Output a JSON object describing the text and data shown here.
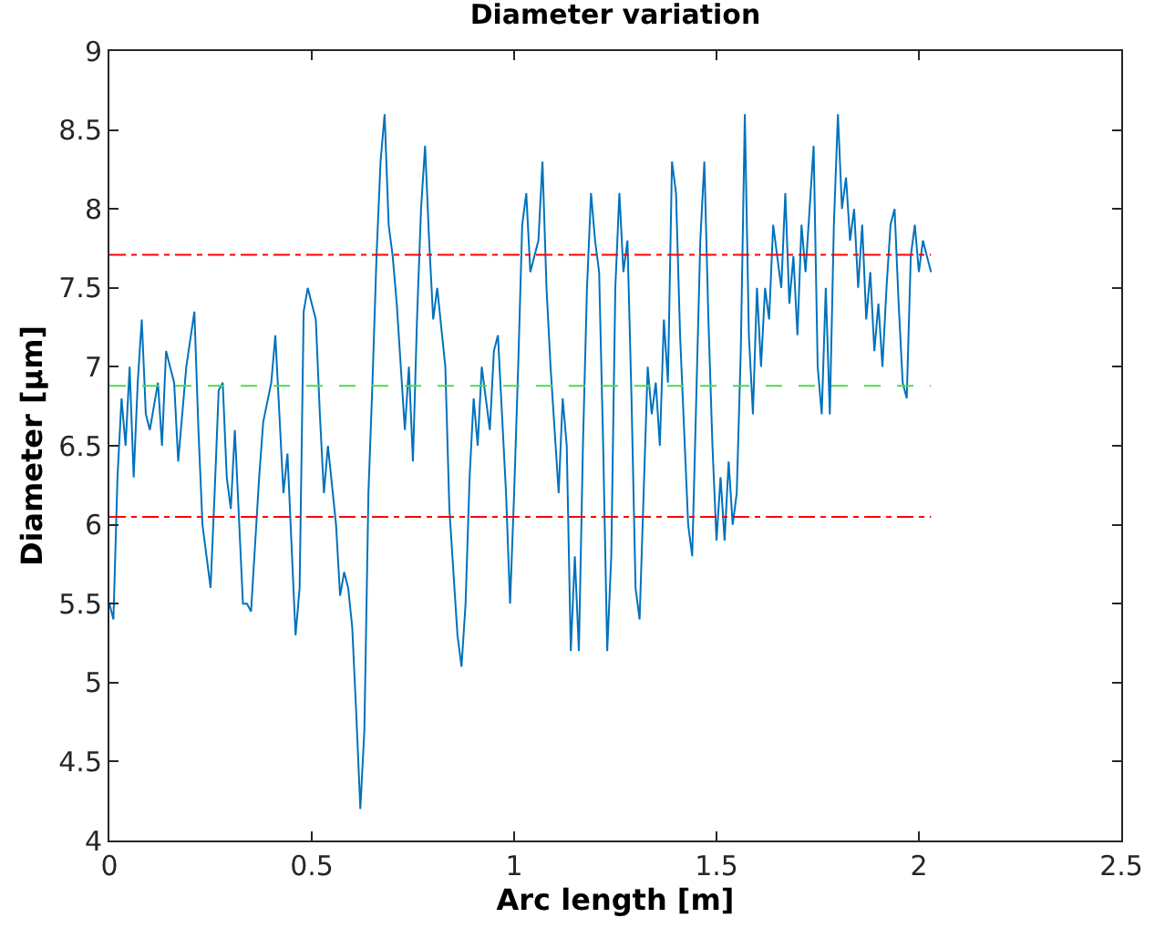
{
  "chart_data": {
    "type": "line",
    "title": "Diameter variation",
    "xlabel": "Arc length [m]",
    "ylabel": "Diameter [µm]",
    "x": [
      0,
      0.01,
      0.02,
      0.03,
      0.04,
      0.05,
      0.06,
      0.07,
      0.08,
      0.09,
      0.1,
      0.12,
      0.13,
      0.14,
      0.16,
      0.17,
      0.19,
      0.21,
      0.22,
      0.23,
      0.25,
      0.26,
      0.27,
      0.28,
      0.29,
      0.3,
      0.31,
      0.33,
      0.34,
      0.35,
      0.37,
      0.38,
      0.4,
      0.41,
      0.42,
      0.43,
      0.44,
      0.46,
      0.47,
      0.48,
      0.49,
      0.51,
      0.52,
      0.53,
      0.54,
      0.56,
      0.57,
      0.58,
      0.59,
      0.6,
      0.61,
      0.62,
      0.63,
      0.64,
      0.65,
      0.66,
      0.67,
      0.68,
      0.69,
      0.7,
      0.71,
      0.72,
      0.73,
      0.74,
      0.75,
      0.76,
      0.77,
      0.78,
      0.79,
      0.8,
      0.81,
      0.83,
      0.84,
      0.85,
      0.86,
      0.87,
      0.88,
      0.89,
      0.9,
      0.91,
      0.92,
      0.94,
      0.95,
      0.96,
      0.97,
      0.98,
      0.99,
      1.0,
      1.01,
      1.02,
      1.03,
      1.04,
      1.06,
      1.07,
      1.08,
      1.09,
      1.1,
      1.11,
      1.12,
      1.13,
      1.14,
      1.15,
      1.16,
      1.17,
      1.18,
      1.19,
      1.2,
      1.21,
      1.22,
      1.23,
      1.24,
      1.25,
      1.26,
      1.27,
      1.28,
      1.29,
      1.3,
      1.31,
      1.32,
      1.33,
      1.34,
      1.35,
      1.36,
      1.37,
      1.38,
      1.39,
      1.4,
      1.41,
      1.42,
      1.43,
      1.44,
      1.45,
      1.46,
      1.47,
      1.48,
      1.49,
      1.5,
      1.51,
      1.52,
      1.53,
      1.54,
      1.55,
      1.56,
      1.57,
      1.58,
      1.59,
      1.6,
      1.61,
      1.62,
      1.63,
      1.64,
      1.66,
      1.67,
      1.68,
      1.69,
      1.7,
      1.71,
      1.72,
      1.74,
      1.75,
      1.76,
      1.77,
      1.78,
      1.79,
      1.8,
      1.81,
      1.82,
      1.83,
      1.84,
      1.85,
      1.86,
      1.87,
      1.88,
      1.89,
      1.9,
      1.91,
      1.92,
      1.93,
      1.94,
      1.95,
      1.96,
      1.97,
      1.98,
      1.99,
      2.0,
      2.01,
      2.02,
      2.03
    ],
    "series": [
      {
        "color": "#0072bd",
        "values": [
          5.5,
          5.4,
          6.3,
          6.8,
          6.5,
          7.0,
          6.3,
          6.9,
          7.3,
          6.7,
          6.6,
          6.9,
          6.5,
          7.1,
          6.9,
          6.4,
          7.0,
          7.35,
          6.6,
          6.0,
          5.6,
          6.2,
          6.85,
          6.9,
          6.3,
          6.1,
          6.6,
          5.5,
          5.5,
          5.45,
          6.3,
          6.65,
          6.9,
          7.2,
          6.7,
          6.2,
          6.45,
          5.3,
          5.6,
          7.35,
          7.5,
          7.3,
          6.7,
          6.2,
          6.5,
          6.0,
          5.55,
          5.7,
          5.6,
          5.35,
          4.8,
          4.2,
          4.7,
          6.2,
          6.9,
          7.7,
          8.3,
          8.6,
          7.9,
          7.7,
          7.4,
          7.0,
          6.6,
          7.0,
          6.4,
          7.3,
          8.0,
          8.4,
          7.8,
          7.3,
          7.5,
          7.0,
          6.1,
          5.7,
          5.3,
          5.1,
          5.5,
          6.3,
          6.8,
          6.5,
          7.0,
          6.6,
          7.1,
          7.2,
          6.7,
          6.2,
          5.5,
          6.2,
          7.0,
          7.9,
          8.1,
          7.6,
          7.8,
          8.3,
          7.5,
          7.0,
          6.6,
          6.2,
          6.8,
          6.5,
          5.2,
          5.8,
          5.2,
          6.5,
          7.5,
          8.1,
          7.8,
          7.6,
          6.5,
          5.2,
          5.8,
          7.5,
          8.1,
          7.6,
          7.8,
          6.8,
          5.6,
          5.4,
          6.2,
          7.0,
          6.7,
          6.9,
          6.5,
          7.3,
          6.9,
          8.3,
          8.1,
          7.2,
          6.6,
          6.0,
          5.8,
          6.8,
          7.8,
          8.3,
          7.3,
          6.5,
          5.9,
          6.3,
          5.9,
          6.4,
          6.0,
          6.2,
          7.1,
          8.6,
          7.2,
          6.7,
          7.5,
          7.0,
          7.5,
          7.3,
          7.9,
          7.5,
          8.1,
          7.4,
          7.7,
          7.2,
          7.9,
          7.6,
          8.4,
          7.0,
          6.7,
          7.5,
          6.7,
          7.9,
          8.6,
          8.0,
          8.2,
          7.8,
          8.0,
          7.5,
          7.9,
          7.3,
          7.6,
          7.1,
          7.4,
          7.0,
          7.5,
          7.9,
          8.0,
          7.4,
          6.9,
          6.8,
          7.7,
          7.9,
          7.6,
          7.8,
          7.7,
          7.6
        ]
      }
    ],
    "xlim": [
      0,
      2.5
    ],
    "xticks": [
      0,
      0.5,
      1,
      1.5,
      2,
      2.5
    ],
    "ylim": [
      4,
      9
    ],
    "yticks": [
      4,
      4.5,
      5,
      5.5,
      6,
      6.5,
      7,
      7.5,
      8,
      8.5,
      9
    ],
    "ref_lines": [
      {
        "axis": "y",
        "value": 7.71,
        "color": "#ff0000",
        "line_style": "dashdot"
      },
      {
        "axis": "y",
        "value": 6.88,
        "color": "#4ddb4d",
        "line_style": "dashed"
      },
      {
        "axis": "y",
        "value": 6.05,
        "color": "#ff0000",
        "line_style": "dashdot"
      }
    ],
    "marker": "none",
    "line_style": "solid"
  }
}
